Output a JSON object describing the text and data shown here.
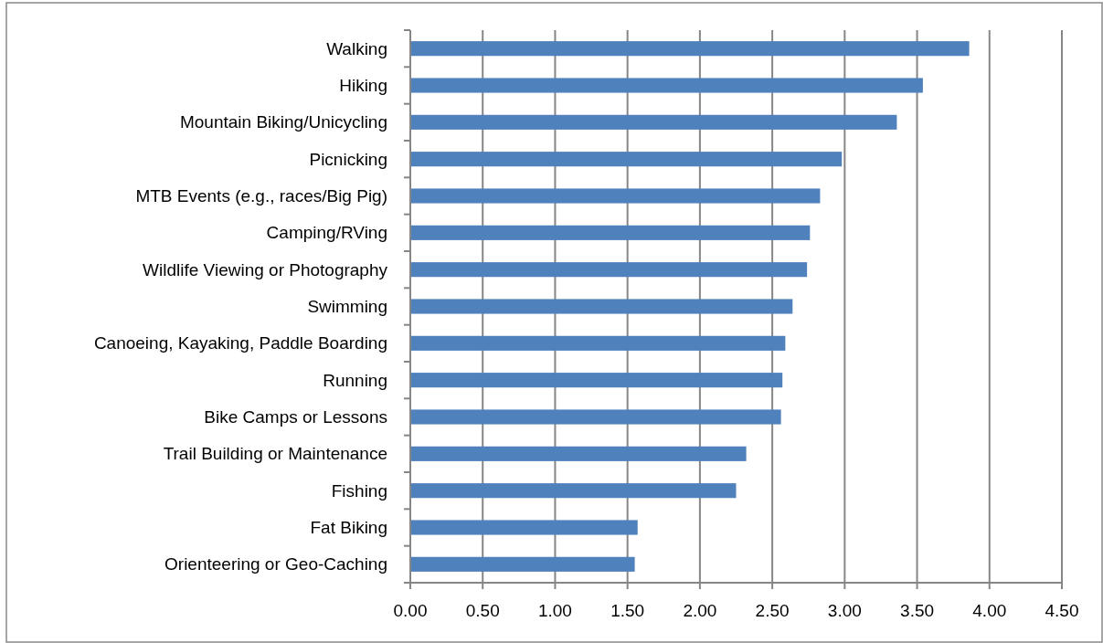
{
  "chart_data": {
    "type": "bar",
    "orientation": "horizontal",
    "categories": [
      "Walking",
      "Hiking",
      "Mountain Biking/Unicycling",
      "Picnicking",
      "MTB Events (e.g., races/Big Pig)",
      "Camping/RVing",
      "Wildlife Viewing or Photography",
      "Swimming",
      "Canoeing, Kayaking, Paddle Boarding",
      "Running",
      "Bike Camps or Lessons",
      "Trail Building or Maintenance",
      "Fishing",
      "Fat Biking",
      "Orienteering or Geo-Caching"
    ],
    "values": [
      3.86,
      3.54,
      3.36,
      2.98,
      2.83,
      2.76,
      2.74,
      2.64,
      2.59,
      2.57,
      2.56,
      2.32,
      2.25,
      1.57,
      1.55
    ],
    "color": "#4f81bd",
    "xlim": [
      0,
      4.5
    ],
    "xticks": [
      {
        "value": 0,
        "label": "0.00"
      },
      {
        "value": 0.5,
        "label": "0.50"
      },
      {
        "value": 1,
        "label": "1.00"
      },
      {
        "value": 1.5,
        "label": "1.50"
      },
      {
        "value": 2,
        "label": "2.00"
      },
      {
        "value": 2.5,
        "label": "2.50"
      },
      {
        "value": 3,
        "label": "3.00"
      },
      {
        "value": 3.5,
        "label": "3.50"
      },
      {
        "value": 4,
        "label": "4.00"
      },
      {
        "value": 4.5,
        "label": "4.50"
      }
    ],
    "grid": "x"
  }
}
